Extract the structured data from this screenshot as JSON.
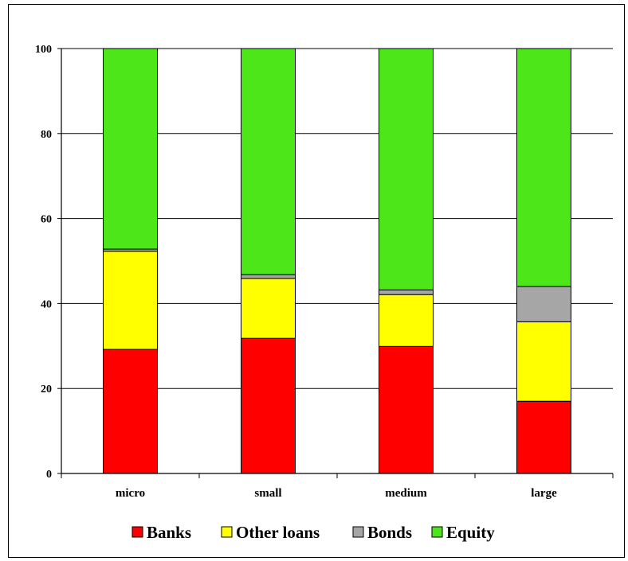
{
  "chart_data": {
    "type": "bar",
    "stacked": true,
    "categories": [
      "micro",
      "small",
      "medium",
      "large"
    ],
    "series": [
      {
        "name": "Banks",
        "color": "#ff0000",
        "values": [
          29.2,
          31.8,
          29.9,
          17.0
        ]
      },
      {
        "name": "Other loans",
        "color": "#ffff00",
        "values": [
          23.1,
          14.1,
          12.2,
          18.7
        ]
      },
      {
        "name": "Bonds",
        "color": "#a6a6a6",
        "values": [
          0.5,
          0.9,
          1.1,
          8.3
        ]
      },
      {
        "name": "Equity",
        "color": "#4ce619",
        "values": [
          47.2,
          53.2,
          56.8,
          56.0
        ]
      }
    ],
    "ylim": [
      0,
      100
    ],
    "yticks": [
      0,
      20,
      40,
      60,
      80,
      100
    ],
    "ytick_labels": [
      "0",
      "20",
      "40",
      "60",
      "80",
      "100"
    ],
    "grid": true,
    "legend_position": "bottom",
    "title": "",
    "xlabel": "",
    "ylabel": ""
  }
}
